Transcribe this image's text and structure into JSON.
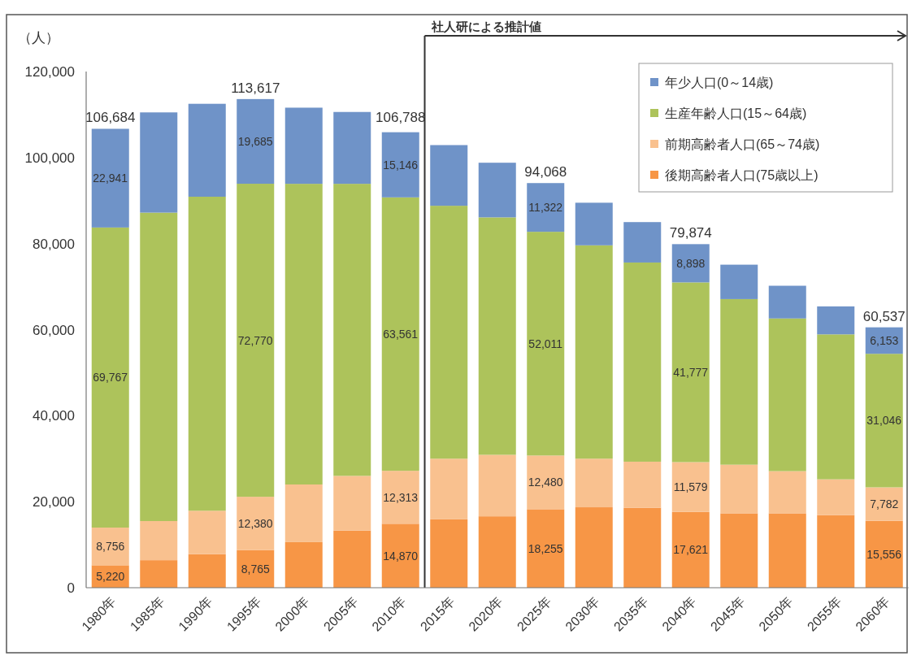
{
  "chart_data": {
    "type": "bar",
    "stacked": true,
    "ylabel": "（人）",
    "categories": [
      "1980年",
      "1985年",
      "1990年",
      "1995年",
      "2000年",
      "2005年",
      "2010年",
      "2015年",
      "2020年",
      "2025年",
      "2030年",
      "2035年",
      "2040年",
      "2045年",
      "2050年",
      "2055年",
      "2060年"
    ],
    "series": [
      {
        "name": "後期高齢者人口(75歳以上)",
        "color": "#f79646",
        "values": [
          5220,
          6400,
          7800,
          8765,
          10600,
          13300,
          14870,
          15900,
          16600,
          18255,
          18700,
          18600,
          17621,
          17300,
          17300,
          16900,
          15556
        ],
        "value_labels": [
          "5,220",
          null,
          null,
          "8,765",
          null,
          null,
          "14,870",
          null,
          null,
          "18,255",
          null,
          null,
          "17,621",
          null,
          null,
          null,
          "15,556"
        ]
      },
      {
        "name": "前期高齢者人口(65～74歳)",
        "color": "#f9c18f",
        "values": [
          8756,
          9100,
          10100,
          12380,
          13400,
          12700,
          12313,
          14100,
          14300,
          12480,
          11300,
          10700,
          11579,
          11300,
          9800,
          8300,
          7782
        ],
        "value_labels": [
          "8,756",
          null,
          null,
          "12,380",
          null,
          null,
          "12,313",
          null,
          null,
          "12,480",
          null,
          null,
          "11,579",
          null,
          null,
          null,
          "7,782"
        ]
      },
      {
        "name": "生産年齢人口(15～64歳)",
        "color": "#adc35b",
        "values": [
          69767,
          71700,
          73000,
          72770,
          69900,
          67900,
          63561,
          58800,
          55200,
          52011,
          49600,
          46300,
          41777,
          38500,
          35500,
          33700,
          31046
        ],
        "value_labels": [
          "69,767",
          null,
          null,
          "72,770",
          null,
          null,
          "63,561",
          null,
          null,
          "52,011",
          null,
          null,
          "41,777",
          null,
          null,
          null,
          "31,046"
        ]
      },
      {
        "name": "年少人口(0～14歳)",
        "color": "#6f93c8",
        "values": [
          22941,
          23300,
          21600,
          19685,
          17700,
          16700,
          15146,
          14100,
          12700,
          11322,
          9900,
          9400,
          8898,
          8000,
          7600,
          6500,
          6153
        ],
        "value_labels": [
          "22,941",
          null,
          null,
          "19,685",
          null,
          null,
          "15,146",
          null,
          null,
          "11,322",
          null,
          null,
          "8,898",
          null,
          null,
          null,
          "6,153"
        ]
      }
    ],
    "annotations": [
      {
        "text": "106,684",
        "x": "1980年",
        "y": 106684
      },
      {
        "text": "113,617",
        "x": "1995年",
        "y": 113617
      },
      {
        "text": "106,788",
        "x": "2010年",
        "y": 106788
      },
      {
        "text": "94,068",
        "x": "2025年",
        "y": 94068
      },
      {
        "text": "79,874",
        "x": "2040年",
        "y": 79874
      },
      {
        "text": "60,537",
        "x": "2060年",
        "y": 60537
      }
    ],
    "ref_lines": [
      {
        "axis": "x",
        "value": "2015年",
        "label": "社人研による推計値",
        "color": "#333333"
      }
    ],
    "ylim": [
      0,
      120000
    ],
    "yticks": [
      0,
      {
        "value": 20000,
        "label": "20,000"
      },
      {
        "value": 40000,
        "label": "40,000"
      },
      {
        "value": 60000,
        "label": "60,000"
      },
      {
        "value": 80000,
        "label": "80,000"
      },
      {
        "value": 100000,
        "label": "100,000"
      },
      {
        "value": 120000,
        "label": "120,000"
      }
    ],
    "legend": "top right",
    "grid": false
  }
}
